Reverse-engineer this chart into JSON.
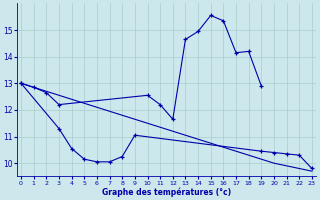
{
  "xlabel": "Graphe des températures (°c)",
  "bg_color": "#cce8ec",
  "grid_color": "#aacccc",
  "line_color": "#0000aa",
  "x_ticks": [
    0,
    1,
    2,
    3,
    4,
    5,
    6,
    7,
    8,
    9,
    10,
    11,
    12,
    13,
    14,
    15,
    16,
    17,
    18,
    19,
    20,
    21,
    22,
    23
  ],
  "ylim": [
    9.5,
    16.0
  ],
  "yticks": [
    10,
    11,
    12,
    13,
    14,
    15
  ],
  "line1_x": [
    0,
    1,
    2,
    3,
    10,
    11,
    12,
    13,
    14,
    15,
    16,
    17,
    18,
    19
  ],
  "line1_y": [
    13.0,
    12.85,
    12.65,
    12.2,
    12.55,
    12.2,
    11.65,
    14.65,
    14.95,
    15.55,
    15.35,
    14.15,
    14.2,
    12.9
  ],
  "line2_x": [
    0,
    3,
    4,
    5,
    6,
    7,
    8,
    9,
    19,
    20,
    21,
    22,
    23
  ],
  "line2_y": [
    13.0,
    11.3,
    10.55,
    10.15,
    10.05,
    10.05,
    10.25,
    11.05,
    10.45,
    10.4,
    10.35,
    10.3,
    9.8
  ],
  "line3_x": [
    0,
    1,
    2,
    3,
    4,
    5,
    6,
    7,
    8,
    9,
    10,
    11,
    12,
    13,
    14,
    15,
    16,
    17,
    18,
    19,
    20,
    21,
    22,
    23
  ],
  "line3_y": [
    13.0,
    12.85,
    12.7,
    12.55,
    12.4,
    12.25,
    12.1,
    11.95,
    11.8,
    11.65,
    11.5,
    11.35,
    11.2,
    11.05,
    10.9,
    10.75,
    10.6,
    10.45,
    10.3,
    10.15,
    10.0,
    9.9,
    9.8,
    9.7
  ]
}
